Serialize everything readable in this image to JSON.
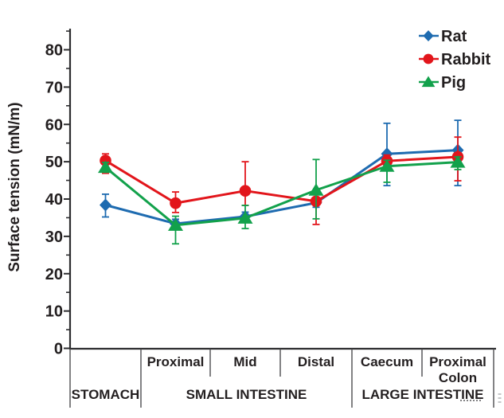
{
  "chart_data": {
    "type": "line",
    "ylabel": "Surface tension (mN/m)",
    "axis": {
      "ylim": [
        0,
        86
      ],
      "ytick_major": 10,
      "ytick_minor": 5,
      "grid": false
    },
    "yticks": [
      0,
      10,
      20,
      30,
      40,
      50,
      60,
      70,
      80
    ],
    "categories": [
      "Stomach",
      "Small intestine - Proximal",
      "Small intestine - Mid",
      "Small intestine - Distal",
      "Large intestine - Caecum",
      "Large intestine - Proximal Colon"
    ],
    "column_labels": [
      [],
      [
        "Proximal"
      ],
      [
        "Mid"
      ],
      [
        "Distal"
      ],
      [
        "Caecum"
      ],
      [
        "Proximal",
        "Colon"
      ]
    ],
    "groups": [
      {
        "label": "STOMACH",
        "from": 0,
        "to": 1
      },
      {
        "label": "SMALL INTESTINE",
        "from": 1,
        "to": 4
      },
      {
        "label": "LARGE INTESTINE",
        "from": 4,
        "to": 6
      }
    ],
    "legend_position": "top-right",
    "series": [
      {
        "name": "Rat",
        "marker": "diamond",
        "color": "#1e6bb0",
        "values": [
          38.4,
          33.4,
          35.3,
          39.0,
          52.1,
          53.1
        ],
        "err_up": [
          2.9,
          1.2,
          1.2,
          1.2,
          8.2,
          8.0
        ],
        "err_down": [
          3.2,
          1.2,
          1.2,
          1.2,
          8.5,
          9.5
        ]
      },
      {
        "name": "Rabbit",
        "marker": "circle",
        "color": "#e2151b",
        "values": [
          50.3,
          38.9,
          42.2,
          39.4,
          50.2,
          51.3
        ],
        "err_up": [
          1.8,
          3.0,
          7.8,
          2.0,
          1.6,
          5.3
        ],
        "err_down": [
          3.4,
          2.5,
          3.9,
          6.2,
          1.6,
          6.4
        ]
      },
      {
        "name": "Pig",
        "marker": "triangle",
        "color": "#12a14b",
        "values": [
          48.5,
          33.0,
          34.9,
          42.4,
          48.8,
          49.9
        ],
        "err_up": [
          1.3,
          2.4,
          3.4,
          8.2,
          1.6,
          1.4
        ],
        "err_down": [
          1.3,
          5.0,
          2.8,
          7.7,
          4.3,
          2.0
        ]
      }
    ],
    "colors": {
      "axis": "#2d2d2f",
      "table_lines": "#58595b",
      "text": "#231f20",
      "artifact": "#c4c6c8"
    }
  }
}
